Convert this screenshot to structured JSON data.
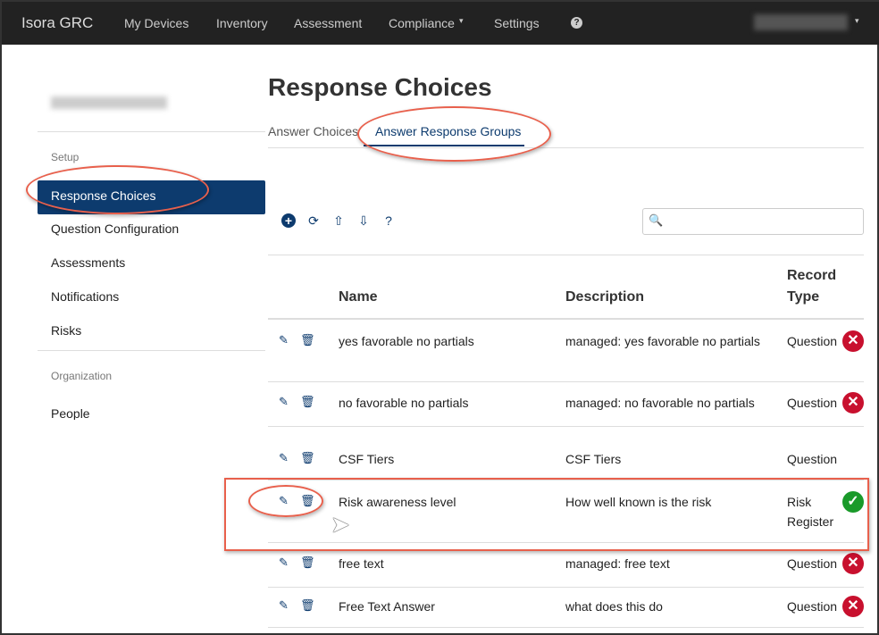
{
  "nav": {
    "brand": "Isora GRC",
    "items": [
      "My Devices",
      "Inventory",
      "Assessment",
      "Compliance",
      "Settings"
    ],
    "dropdown_caret": "▾",
    "help_icon": "?"
  },
  "sidebar": {
    "setup_label": "Setup",
    "active": "Response Choices",
    "items": [
      "Question Configuration",
      "Assessments",
      "Notifications",
      "Risks"
    ],
    "org_label": "Organization",
    "org_items": [
      "People"
    ]
  },
  "page": {
    "title": "Response Choices",
    "tabs": [
      "Answer Choices",
      "Answer Response Groups"
    ],
    "active_tab": 1
  },
  "table": {
    "headers": [
      "Name",
      "Description",
      "Record Type"
    ],
    "rows": [
      {
        "name": "yes favorable no partials",
        "description": "managed: yes favorable no partials",
        "type": "Question",
        "status": "x"
      },
      {
        "name": "no favorable no partials",
        "description": "managed: no favorable no partials",
        "type": "Question",
        "status": "x"
      },
      {
        "name": "CSF Tiers",
        "description": "CSF Tiers",
        "type": "Question",
        "status": ""
      },
      {
        "name": "Risk awareness level",
        "description": "How well known is the risk",
        "type": "Risk Register",
        "status": "check"
      },
      {
        "name": "free text",
        "description": "managed: free text",
        "type": "Question",
        "status": "x"
      },
      {
        "name": "Free Text Answer",
        "description": "what does this do",
        "type": "Question",
        "status": "x"
      }
    ]
  },
  "colors": {
    "navbar": "#222222",
    "accent": "#0d3b6e",
    "error": "#c8102e",
    "success": "#1a9a2a",
    "annotation": "#e8604c"
  }
}
